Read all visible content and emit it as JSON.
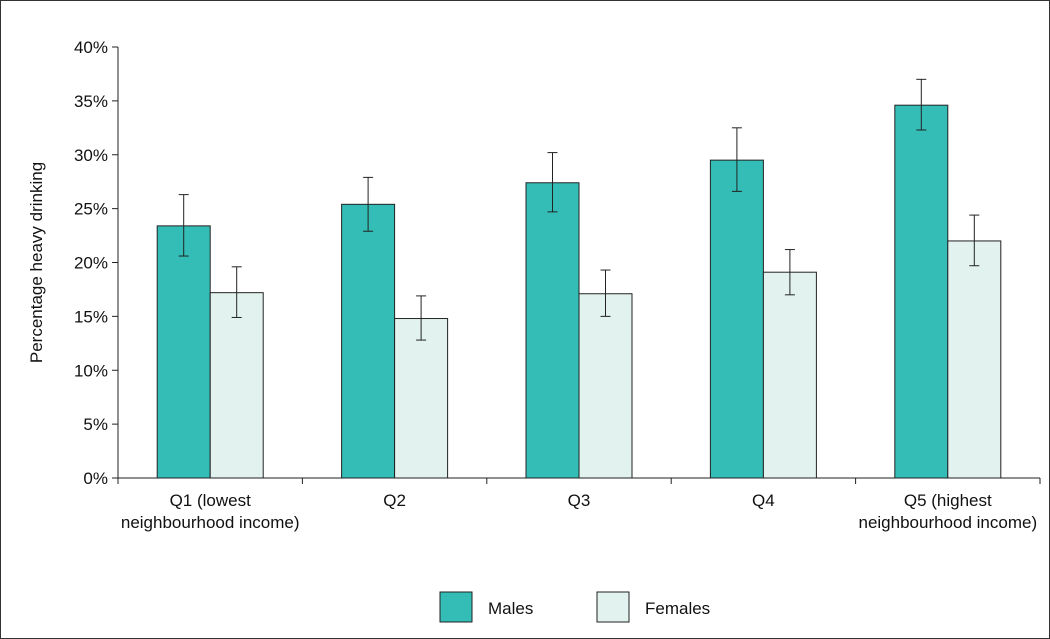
{
  "chart_data": {
    "type": "bar",
    "categories": [
      [
        "Q1 (lowest",
        "neighbourhood income)"
      ],
      [
        "Q2"
      ],
      [
        "Q3"
      ],
      [
        "Q4"
      ],
      [
        "Q5 (highest",
        "neighbourhood income)"
      ]
    ],
    "series": [
      {
        "name": "Males",
        "color": "#33bdb6",
        "values": [
          23.4,
          25.4,
          27.4,
          29.5,
          34.6
        ],
        "error_low": [
          20.6,
          22.9,
          24.7,
          26.6,
          32.3
        ],
        "error_high": [
          26.3,
          27.9,
          30.2,
          32.5,
          37.0
        ]
      },
      {
        "name": "Females",
        "color": "#e2f3ef",
        "values": [
          17.2,
          14.8,
          17.1,
          19.1,
          22.0
        ],
        "error_low": [
          14.9,
          12.8,
          15.0,
          17.0,
          19.7
        ],
        "error_high": [
          19.6,
          16.9,
          19.3,
          21.2,
          24.4
        ]
      }
    ],
    "ylabel": "Percentage heavy drinking",
    "xlabel": "",
    "ylim": [
      0,
      40
    ],
    "yticks": [
      0,
      5,
      10,
      15,
      20,
      25,
      30,
      35,
      40
    ],
    "ytick_labels": [
      "0%",
      "5%",
      "10%",
      "15%",
      "20%",
      "25%",
      "30%",
      "35%",
      "40%"
    ],
    "grid": false,
    "legend_position": "bottom-center",
    "error_bars": true
  }
}
